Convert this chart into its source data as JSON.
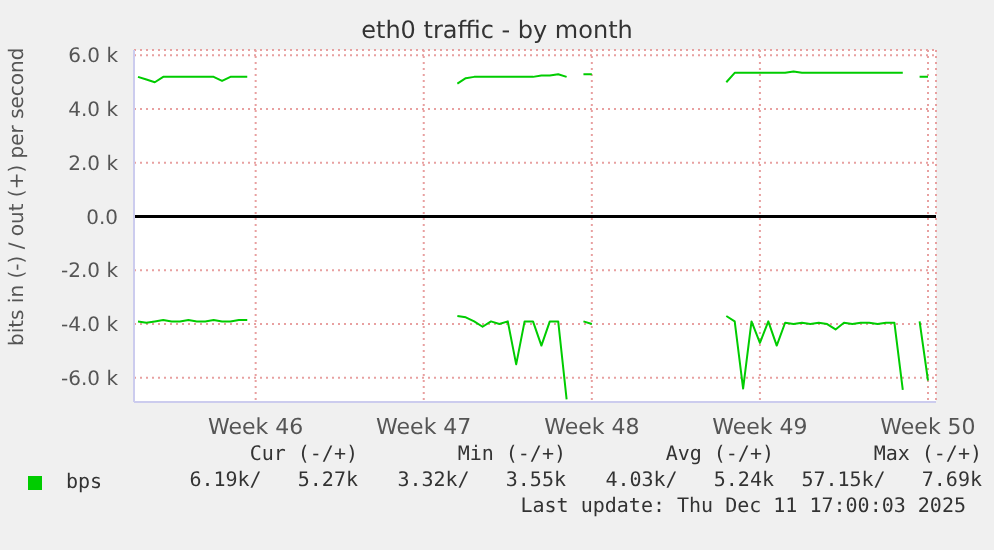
{
  "chart_data": {
    "type": "line",
    "title": "eth0 traffic - by month",
    "ylabel": "bits in (-) / out (+) per second",
    "categories": [
      null,
      null,
      null,
      null,
      null,
      null,
      null,
      null,
      null,
      null,
      null,
      null,
      null,
      null,
      "Week 46",
      null,
      null,
      null,
      null,
      null,
      null,
      null,
      null,
      null,
      null,
      null,
      null,
      null,
      null,
      null,
      null,
      null,
      null,
      null,
      "Week 47",
      null,
      null,
      null,
      null,
      null,
      null,
      null,
      null,
      null,
      null,
      null,
      null,
      null,
      null,
      null,
      null,
      null,
      null,
      null,
      "Week 48",
      null,
      null,
      null,
      null,
      null,
      null,
      null,
      null,
      null,
      null,
      null,
      null,
      null,
      null,
      null,
      null,
      null,
      null,
      null,
      "Week 49",
      null,
      null,
      null,
      null,
      null,
      null,
      null,
      null,
      null,
      null,
      null,
      null,
      null,
      null,
      null,
      null,
      null,
      null,
      null,
      "Week 50"
    ],
    "ylim": [
      -6900,
      6200
    ],
    "yticks": [
      {
        "value": -6000,
        "label": "-6.0 k"
      },
      {
        "value": -4000,
        "label": "-4.0 k"
      },
      {
        "value": -2000,
        "label": "-2.0 k"
      },
      {
        "value": 0,
        "label": "0.0"
      },
      {
        "value": 2000,
        "label": "2.0 k"
      },
      {
        "value": 4000,
        "label": "4.0 k"
      },
      {
        "value": 6000,
        "label": "6.0 k"
      }
    ],
    "grid": true,
    "legend": "bottom left",
    "marker": "none",
    "line_style": "solid",
    "ref_lines": [
      {
        "axis": "y",
        "value": 0,
        "color": "#000000"
      }
    ],
    "series": [
      {
        "name": "bps",
        "color": "#00cc00",
        "values": [
          5200,
          5100,
          5000,
          5200,
          5200,
          5200,
          5200,
          5200,
          5200,
          5200,
          5050,
          5200,
          5200,
          5200,
          null,
          null,
          null,
          null,
          null,
          null,
          null,
          null,
          null,
          null,
          null,
          null,
          null,
          null,
          null,
          null,
          null,
          null,
          null,
          null,
          null,
          null,
          null,
          null,
          4950,
          5150,
          5200,
          5200,
          5200,
          5200,
          5200,
          5200,
          5200,
          5200,
          5250,
          5250,
          5300,
          5200,
          null,
          5300,
          5300,
          null,
          null,
          null,
          null,
          null,
          null,
          null,
          null,
          null,
          null,
          null,
          null,
          null,
          null,
          null,
          5000,
          5350,
          5350,
          5350,
          5350,
          5350,
          5350,
          5350,
          5400,
          5350,
          5350,
          5350,
          5350,
          5350,
          5350,
          5350,
          5350,
          5350,
          5350,
          5350,
          5350,
          5350,
          null,
          5200,
          5200
        ]
      },
      {
        "color": "#00cc00",
        "values": [
          -3900,
          -3950,
          -3900,
          -3850,
          -3900,
          -3900,
          -3850,
          -3900,
          -3900,
          -3850,
          -3900,
          -3900,
          -3850,
          -3850,
          null,
          null,
          null,
          null,
          null,
          null,
          null,
          null,
          null,
          null,
          null,
          null,
          null,
          null,
          null,
          null,
          null,
          null,
          null,
          null,
          null,
          null,
          null,
          null,
          -3700,
          -3750,
          -3900,
          -4100,
          -3900,
          -4000,
          -3900,
          -5500,
          -3900,
          -3900,
          -4800,
          -3900,
          -3900,
          -6800,
          null,
          -3900,
          -4000,
          null,
          null,
          null,
          null,
          null,
          null,
          null,
          null,
          null,
          null,
          null,
          null,
          null,
          null,
          null,
          -3700,
          -3900,
          -6400,
          -3900,
          -4700,
          -3900,
          -4800,
          -3950,
          -4000,
          -3950,
          -4000,
          -3950,
          -4000,
          -4200,
          -3950,
          -4000,
          -3950,
          -3950,
          -4000,
          -3950,
          -3950,
          -6450,
          null,
          -3900,
          -6100
        ]
      }
    ],
    "annotations": [
      "Cur (-/+)",
      "Min (-/+)",
      "Avg (-/+)",
      "Max (-/+)",
      "6.19k/   5.27k",
      "3.32k/   3.55k",
      "4.03k/   5.24k",
      "57.15k/   7.69k",
      "Last update: Thu Dec 11 17:00:03 2025"
    ]
  }
}
